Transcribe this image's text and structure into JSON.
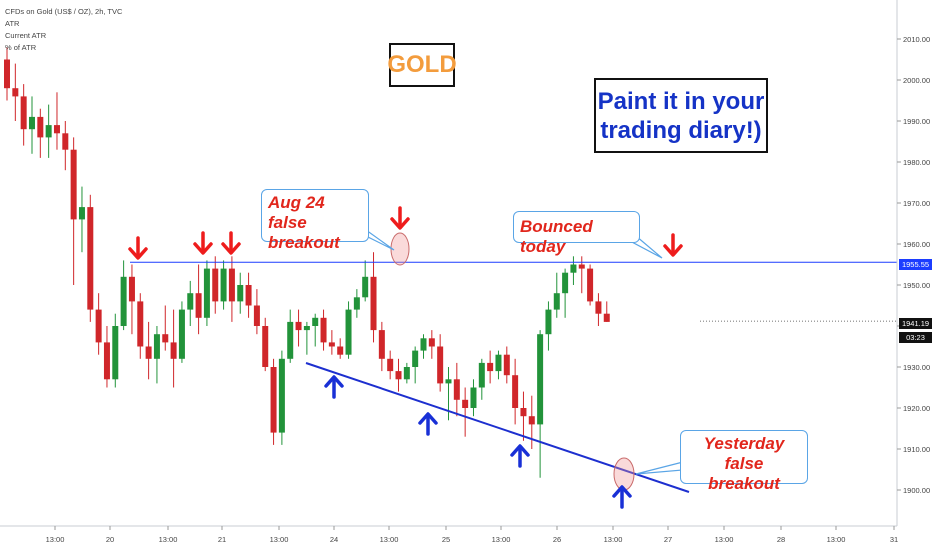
{
  "legend": {
    "symbol": "CFDs on Gold (US$ / OZ), 2h, TVC",
    "line1": "ATR",
    "line2": "Current ATR",
    "line3": "% of ATR"
  },
  "annotations": {
    "gold_label": "GOLD",
    "note_line1": "Paint it in your",
    "note_line2": "trading diary!)",
    "callout_aug24_line1": "Aug 24 false",
    "callout_aug24_line2": "breakout",
    "callout_bounced": "Bounced today",
    "callout_yesterday_line1": "Yesterday",
    "callout_yesterday_line2": "false breakout"
  },
  "price_tags": {
    "resistance": "1955.55",
    "last": "1941.19",
    "countdown": "03:23"
  },
  "colors": {
    "up": "#22933a",
    "down": "#d0262a",
    "resistance_line": "#1c3dff",
    "trend_line": "#1d2fcf",
    "arrow_red": "#ee1c1c",
    "arrow_blue": "#1930d6",
    "gold_text": "#f39c3d",
    "note_text": "#1533c6"
  },
  "chart_data": {
    "type": "candlestick",
    "title": "CFDs on Gold (US$ / OZ), 2h, TVC",
    "timeframe": "2h",
    "ylim": [
      1895,
      2020
    ],
    "y_ticks": [
      "1900.00",
      "1910.00",
      "1920.00",
      "1930.00",
      "1940.00",
      "1950.00",
      "1960.00",
      "1970.00",
      "1980.00",
      "1990.00",
      "2000.00",
      "2010.00"
    ],
    "x_ticks": [
      "13:00",
      "20",
      "13:00",
      "21",
      "13:00",
      "24",
      "13:00",
      "25",
      "13:00",
      "26",
      "13:00",
      "27",
      "13:00",
      "28",
      "13:00",
      "31"
    ],
    "resistance_level": 1955.55,
    "last_price": 1941.19,
    "candles": [
      {
        "o": 2005,
        "h": 2008,
        "l": 1995,
        "c": 1998
      },
      {
        "o": 1998,
        "h": 2004,
        "l": 1990,
        "c": 1996
      },
      {
        "o": 1996,
        "h": 1999,
        "l": 1984,
        "c": 1988
      },
      {
        "o": 1988,
        "h": 1996,
        "l": 1982,
        "c": 1991
      },
      {
        "o": 1991,
        "h": 1993,
        "l": 1981,
        "c": 1986
      },
      {
        "o": 1986,
        "h": 1994,
        "l": 1981,
        "c": 1989
      },
      {
        "o": 1989,
        "h": 1997,
        "l": 1983,
        "c": 1987
      },
      {
        "o": 1987,
        "h": 1990,
        "l": 1978,
        "c": 1983
      },
      {
        "o": 1983,
        "h": 1986,
        "l": 1950,
        "c": 1966
      },
      {
        "o": 1966,
        "h": 1974,
        "l": 1958,
        "c": 1969
      },
      {
        "o": 1969,
        "h": 1972,
        "l": 1941,
        "c": 1944
      },
      {
        "o": 1944,
        "h": 1948,
        "l": 1933,
        "c": 1936
      },
      {
        "o": 1936,
        "h": 1940,
        "l": 1925,
        "c": 1927
      },
      {
        "o": 1927,
        "h": 1943,
        "l": 1925,
        "c": 1940
      },
      {
        "o": 1940,
        "h": 1956,
        "l": 1939,
        "c": 1952
      },
      {
        "o": 1952,
        "h": 1955,
        "l": 1938,
        "c": 1946
      },
      {
        "o": 1946,
        "h": 1948,
        "l": 1932,
        "c": 1935
      },
      {
        "o": 1935,
        "h": 1941,
        "l": 1927,
        "c": 1932
      },
      {
        "o": 1932,
        "h": 1940,
        "l": 1926,
        "c": 1938
      },
      {
        "o": 1938,
        "h": 1945,
        "l": 1934,
        "c": 1936
      },
      {
        "o": 1936,
        "h": 1944,
        "l": 1925,
        "c": 1932
      },
      {
        "o": 1932,
        "h": 1946,
        "l": 1931,
        "c": 1944
      },
      {
        "o": 1944,
        "h": 1951,
        "l": 1940,
        "c": 1948
      },
      {
        "o": 1948,
        "h": 1955,
        "l": 1938,
        "c": 1942
      },
      {
        "o": 1942,
        "h": 1956,
        "l": 1940,
        "c": 1954
      },
      {
        "o": 1954,
        "h": 1957,
        "l": 1943,
        "c": 1946
      },
      {
        "o": 1946,
        "h": 1956,
        "l": 1944,
        "c": 1954
      },
      {
        "o": 1954,
        "h": 1957,
        "l": 1941,
        "c": 1946
      },
      {
        "o": 1946,
        "h": 1953,
        "l": 1943,
        "c": 1950
      },
      {
        "o": 1950,
        "h": 1953,
        "l": 1942,
        "c": 1945
      },
      {
        "o": 1945,
        "h": 1949,
        "l": 1938,
        "c": 1940
      },
      {
        "o": 1940,
        "h": 1942,
        "l": 1929,
        "c": 1930
      },
      {
        "o": 1930,
        "h": 1932,
        "l": 1911,
        "c": 1914
      },
      {
        "o": 1914,
        "h": 1934,
        "l": 1911,
        "c": 1932
      },
      {
        "o": 1932,
        "h": 1944,
        "l": 1931,
        "c": 1941
      },
      {
        "o": 1941,
        "h": 1944,
        "l": 1935,
        "c": 1939
      },
      {
        "o": 1939,
        "h": 1941,
        "l": 1933,
        "c": 1940
      },
      {
        "o": 1940,
        "h": 1943,
        "l": 1935,
        "c": 1942
      },
      {
        "o": 1942,
        "h": 1944,
        "l": 1934,
        "c": 1936
      },
      {
        "o": 1936,
        "h": 1939,
        "l": 1933,
        "c": 1935
      },
      {
        "o": 1935,
        "h": 1937,
        "l": 1932,
        "c": 1933
      },
      {
        "o": 1933,
        "h": 1946,
        "l": 1932,
        "c": 1944
      },
      {
        "o": 1944,
        "h": 1949,
        "l": 1942,
        "c": 1947
      },
      {
        "o": 1947,
        "h": 1956,
        "l": 1946,
        "c": 1952
      },
      {
        "o": 1952,
        "h": 1958,
        "l": 1936,
        "c": 1939
      },
      {
        "o": 1939,
        "h": 1941,
        "l": 1929,
        "c": 1932
      },
      {
        "o": 1932,
        "h": 1934,
        "l": 1927,
        "c": 1929
      },
      {
        "o": 1929,
        "h": 1932,
        "l": 1924,
        "c": 1927
      },
      {
        "o": 1927,
        "h": 1931,
        "l": 1926,
        "c": 1930
      },
      {
        "o": 1930,
        "h": 1935,
        "l": 1926,
        "c": 1934
      },
      {
        "o": 1934,
        "h": 1938,
        "l": 1932,
        "c": 1937
      },
      {
        "o": 1937,
        "h": 1939,
        "l": 1932,
        "c": 1935
      },
      {
        "o": 1935,
        "h": 1938,
        "l": 1924,
        "c": 1926
      },
      {
        "o": 1926,
        "h": 1930,
        "l": 1917,
        "c": 1927
      },
      {
        "o": 1927,
        "h": 1931,
        "l": 1918,
        "c": 1922
      },
      {
        "o": 1922,
        "h": 1925,
        "l": 1913,
        "c": 1920
      },
      {
        "o": 1920,
        "h": 1927,
        "l": 1918,
        "c": 1925
      },
      {
        "o": 1925,
        "h": 1932,
        "l": 1922,
        "c": 1931
      },
      {
        "o": 1931,
        "h": 1934,
        "l": 1926,
        "c": 1929
      },
      {
        "o": 1929,
        "h": 1934,
        "l": 1927,
        "c": 1933
      },
      {
        "o": 1933,
        "h": 1935,
        "l": 1926,
        "c": 1928
      },
      {
        "o": 1928,
        "h": 1932,
        "l": 1916,
        "c": 1920
      },
      {
        "o": 1920,
        "h": 1924,
        "l": 1912,
        "c": 1918
      },
      {
        "o": 1918,
        "h": 1923,
        "l": 1910,
        "c": 1916
      },
      {
        "o": 1916,
        "h": 1939,
        "l": 1903,
        "c": 1938
      },
      {
        "o": 1938,
        "h": 1946,
        "l": 1934,
        "c": 1944
      },
      {
        "o": 1944,
        "h": 1953,
        "l": 1942,
        "c": 1948
      },
      {
        "o": 1948,
        "h": 1954,
        "l": 1942,
        "c": 1953
      },
      {
        "o": 1953,
        "h": 1957,
        "l": 1950,
        "c": 1955
      },
      {
        "o": 1955,
        "h": 1957,
        "l": 1948,
        "c": 1954
      },
      {
        "o": 1954,
        "h": 1955,
        "l": 1945,
        "c": 1946
      },
      {
        "o": 1946,
        "h": 1948,
        "l": 1940,
        "c": 1943
      },
      {
        "o": 1943,
        "h": 1946,
        "l": 1941,
        "c": 1941
      }
    ],
    "annotations": [
      {
        "text": "Aug 24 false breakout",
        "target": "1955.55 resistance test"
      },
      {
        "text": "Bounced today",
        "target": "1955.55 resistance test"
      },
      {
        "text": "Yesterday false breakout",
        "target": "descending trendline"
      }
    ]
  }
}
